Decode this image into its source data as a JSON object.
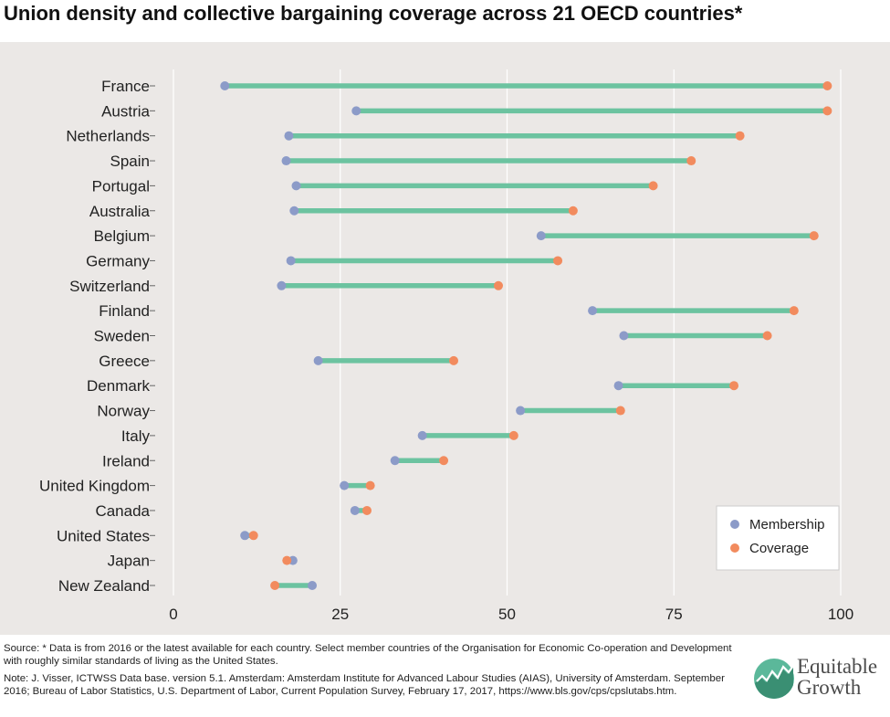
{
  "title": "Union density and collective bargaining coverage across 21 OECD countries*",
  "colors": {
    "membership": "#8c9bc8",
    "coverage": "#f28b5e",
    "bar": "#6cc3a0",
    "panel": "#ebe8e6"
  },
  "chart_data": {
    "type": "dumbbell",
    "title": "Union density and collective bargaining coverage across 21 OECD countries*",
    "xlim": [
      0,
      100
    ],
    "x_ticks": [
      "0",
      "25",
      "50",
      "75",
      "100"
    ],
    "grid": "vertical",
    "legend_position": "bottom-right",
    "legend": [
      {
        "name": "Membership",
        "color_key": "membership"
      },
      {
        "name": "Coverage",
        "color_key": "coverage"
      }
    ],
    "series": [
      {
        "name": "Membership",
        "values": [
          7.7,
          27.4,
          17.3,
          16.9,
          18.4,
          18.1,
          55.1,
          17.6,
          16.2,
          62.8,
          67.5,
          21.7,
          66.7,
          52.0,
          37.3,
          33.2,
          25.6,
          27.2,
          10.7,
          17.9,
          20.8
        ]
      },
      {
        "name": "Coverage",
        "values": [
          98,
          98,
          84.9,
          77.6,
          71.9,
          59.9,
          96,
          57.6,
          48.7,
          93,
          89,
          42,
          84,
          67,
          51,
          40.5,
          29.5,
          29,
          12,
          17,
          15.2
        ]
      }
    ],
    "categories": [
      "France",
      "Austria",
      "Netherlands",
      "Spain",
      "Portugal",
      "Australia",
      "Belgium",
      "Germany",
      "Switzerland",
      "Finland",
      "Sweden",
      "Greece",
      "Denmark",
      "Norway",
      "Italy",
      "Ireland",
      "United Kingdom",
      "Canada",
      "United States",
      "Japan",
      "New Zealand"
    ]
  },
  "footer": {
    "source": "Source: * Data is from 2016 or the latest available for each country. Select member countries of the Organisation for Economic Co-operation and Development with roughly similar standards of living as the United States.",
    "note": "Note: J. Visser, ICTWSS Data base. version 5.1. Amsterdam: Amsterdam Institute for Advanced Labour Studies (AIAS), University of Amsterdam. September 2016; Bureau of Labor Statistics, U.S. Department of Labor, Current Population Survey, February 17, 2017, https://www.bls.gov/cps/cpslutabs.htm."
  },
  "logo": {
    "line1": "Equitable",
    "line2": "Growth",
    "icon": "growth-chart-icon"
  }
}
